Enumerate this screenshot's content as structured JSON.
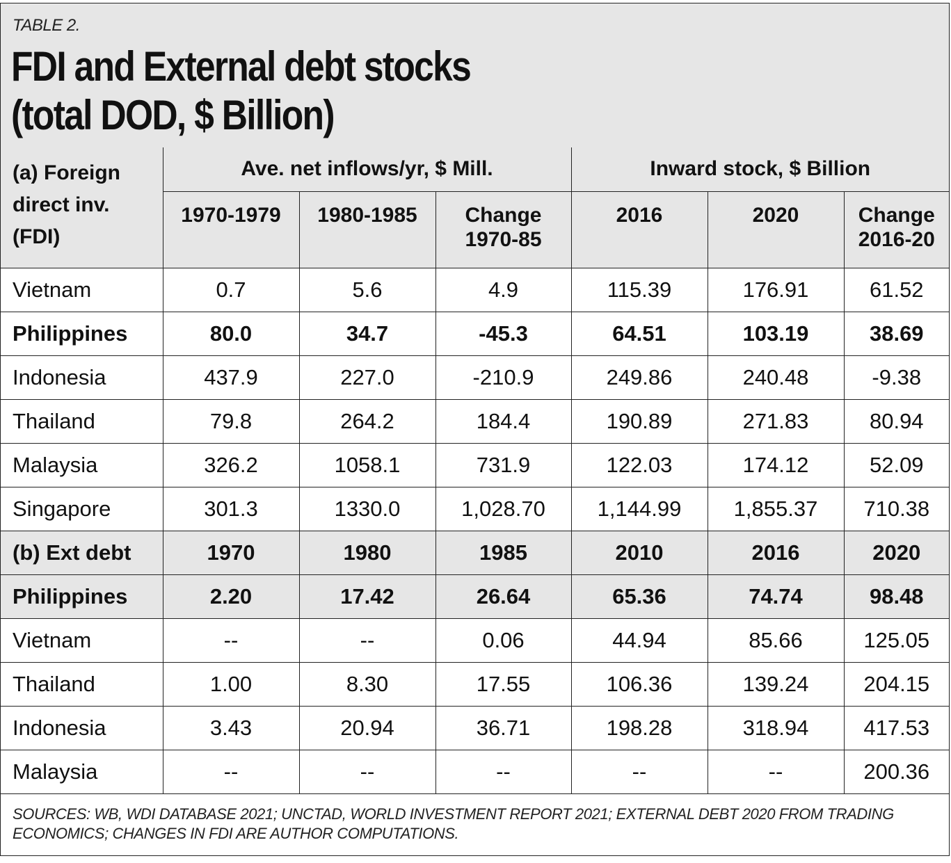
{
  "header": {
    "label": "TABLE 2.",
    "title_line1": "FDI and External debt stocks",
    "title_line2": "(total DOD, $ Billion)"
  },
  "fdi": {
    "section_label_line1": "(a) Foreign",
    "section_label_line2": "direct inv.",
    "section_label_line3": "(FDI)",
    "group1": "Ave. net inflows/yr, $ Mill.",
    "group2": "Inward stock, $ Billion",
    "columns": [
      [
        "1970-1979",
        ""
      ],
      [
        "1980-1985",
        ""
      ],
      [
        "Change",
        "1970-85"
      ],
      [
        "2016",
        ""
      ],
      [
        "2020",
        ""
      ],
      [
        "Change",
        "2016-20"
      ]
    ],
    "rows": [
      {
        "country": "Vietnam",
        "values": [
          "0.7",
          "5.6",
          "4.9",
          "115.39",
          "176.91",
          "61.52"
        ]
      },
      {
        "country": "Philippines",
        "values": [
          "80.0",
          "34.7",
          "-45.3",
          "64.51",
          "103.19",
          "38.69"
        ]
      },
      {
        "country": "Indonesia",
        "values": [
          "437.9",
          "227.0",
          "-210.9",
          "249.86",
          "240.48",
          "-9.38"
        ]
      },
      {
        "country": "Thailand",
        "values": [
          "79.8",
          "264.2",
          "184.4",
          "190.89",
          "271.83",
          "80.94"
        ]
      },
      {
        "country": "Malaysia",
        "values": [
          "326.2",
          "1058.1",
          "731.9",
          "122.03",
          "174.12",
          "52.09"
        ]
      },
      {
        "country": "Singapore",
        "values": [
          "301.3",
          "1330.0",
          "1,028.70",
          "1,144.99",
          "1,855.37",
          "710.38"
        ]
      }
    ]
  },
  "debt": {
    "section_label": "(b) Ext debt",
    "years": [
      "1970",
      "1980",
      "1985",
      "2010",
      "2016",
      "2020"
    ],
    "rows": [
      {
        "country": "Philippines",
        "values": [
          "2.20",
          "17.42",
          "26.64",
          "65.36",
          "74.74",
          "98.48"
        ]
      },
      {
        "country": "Vietnam",
        "values": [
          "--",
          "--",
          "0.06",
          "44.94",
          "85.66",
          "125.05"
        ]
      },
      {
        "country": "Thailand",
        "values": [
          "1.00",
          "8.30",
          "17.55",
          "106.36",
          "139.24",
          "204.15"
        ]
      },
      {
        "country": "Indonesia",
        "values": [
          "3.43",
          "20.94",
          "36.71",
          "198.28",
          "318.94",
          "417.53"
        ]
      },
      {
        "country": "Malaysia",
        "values": [
          "--",
          "--",
          "--",
          "--",
          "--",
          "200.36"
        ]
      }
    ]
  },
  "footer": {
    "sources_line1": "SOURCES: WB, WDI DATABASE 2021; UNCTAD, WORLD INVESTMENT REPORT 2021; EXTERNAL DEBT 2020 FROM TRADING",
    "sources_line2": "ECONOMICS; CHANGES IN FDI ARE AUTHOR COMPUTATIONS."
  },
  "colors": {
    "shade": "#e6e6e6",
    "border": "#222222",
    "text": "#111111"
  }
}
